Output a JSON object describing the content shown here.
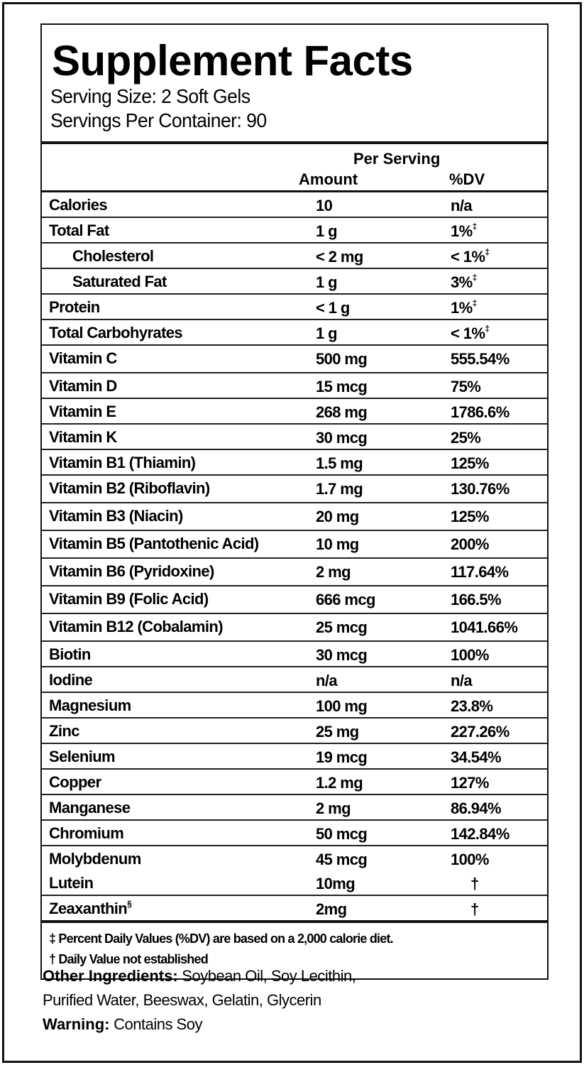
{
  "label": {
    "title": "Supplement Facts",
    "serving_size": "Serving Size: 2 Soft Gels",
    "servings_per_container": "Servings Per Container: 90",
    "column_headers": {
      "per_serving": "Per Serving",
      "amount": "Amount",
      "dv": "%DV"
    },
    "rows": [
      {
        "name": "Calories",
        "amount": "10",
        "dv": "n/a",
        "mark": ""
      },
      {
        "name": "Total Fat",
        "amount": "1 g",
        "dv": "1%",
        "mark": "‡"
      },
      {
        "name": "Cholesterol",
        "amount": "< 2 mg",
        "dv": "< 1%",
        "mark": "‡"
      },
      {
        "name": "Saturated Fat",
        "amount": "1 g",
        "dv": "3%",
        "mark": "‡"
      },
      {
        "name": "Protein",
        "amount": "< 1 g",
        "dv": "1%",
        "mark": "‡"
      },
      {
        "name": "Total Carbohyrates",
        "amount": "1 g",
        "dv": "< 1%",
        "mark": "‡"
      },
      {
        "name": "Vitamin C",
        "amount": "500 mg",
        "dv": "555.54%",
        "mark": ""
      },
      {
        "name": "Vitamin D",
        "amount": "15 mcg",
        "dv": "75%",
        "mark": ""
      },
      {
        "name": "Vitamin E",
        "amount": "268 mg",
        "dv": "1786.6%",
        "mark": ""
      },
      {
        "name": "Vitamin K",
        "amount": "30 mcg",
        "dv": "25%",
        "mark": ""
      },
      {
        "name": "Vitamin B1 (Thiamin)",
        "amount": "1.5 mg",
        "dv": "125%",
        "mark": ""
      },
      {
        "name": "Vitamin B2 (Riboflavin)",
        "amount": "1.7 mg",
        "dv": "130.76%",
        "mark": ""
      },
      {
        "name": "Vitamin B3 (Niacin)",
        "amount": "20 mg",
        "dv": "125%",
        "mark": ""
      },
      {
        "name": "Vitamin B5 (Pantothenic Acid)",
        "amount": "10 mg",
        "dv": "200%",
        "mark": ""
      },
      {
        "name": "Vitamin B6 (Pyridoxine)",
        "amount": "2 mg",
        "dv": "117.64%",
        "mark": ""
      },
      {
        "name": "Vitamin B9 (Folic Acid)",
        "amount": "666 mcg",
        "dv": "166.5%",
        "mark": ""
      },
      {
        "name": "Vitamin B12 (Cobalamin)",
        "amount": "25 mcg",
        "dv": "1041.66%",
        "mark": ""
      },
      {
        "name": "Biotin",
        "amount": "30 mcg",
        "dv": "100%",
        "mark": ""
      },
      {
        "name": "Iodine",
        "amount": "n/a",
        "dv": "n/a",
        "mark": ""
      },
      {
        "name": "Magnesium",
        "amount": "100 mg",
        "dv": "23.8%",
        "mark": ""
      },
      {
        "name": "Zinc",
        "amount": "25 mg",
        "dv": "227.26%",
        "mark": ""
      },
      {
        "name": "Selenium",
        "amount": "19 mcg",
        "dv": "34.54%",
        "mark": ""
      },
      {
        "name": "Copper",
        "amount": "1.2 mg",
        "dv": "127%",
        "mark": ""
      },
      {
        "name": "Manganese",
        "amount": "2 mg",
        "dv": "86.94%",
        "mark": ""
      },
      {
        "name": "Chromium",
        "amount": "50 mcg",
        "dv": "142.84%",
        "mark": ""
      },
      {
        "name": "Molybdenum",
        "amount": "45 mcg",
        "dv": "100%",
        "mark": ""
      },
      {
        "name": "Lutein",
        "amount": "10mg",
        "dv": "†",
        "mark": ""
      },
      {
        "name": "Zeaxanthin",
        "amount": "2mg",
        "dv": "†",
        "mark": "§"
      }
    ],
    "footnotes": [
      "‡ Percent Daily Values (%DV) are based on a 2,000 calorie diet.",
      "† Daily Value not established"
    ]
  },
  "other_ingredients": {
    "label": "Other Ingredients:",
    "line1": " Soybean Oil, Soy Lecithin,",
    "line2": "Purified Water, Beeswax, Gelatin, Glycerin"
  },
  "warning": {
    "label": "Warning:",
    "text": " Contains Soy"
  }
}
